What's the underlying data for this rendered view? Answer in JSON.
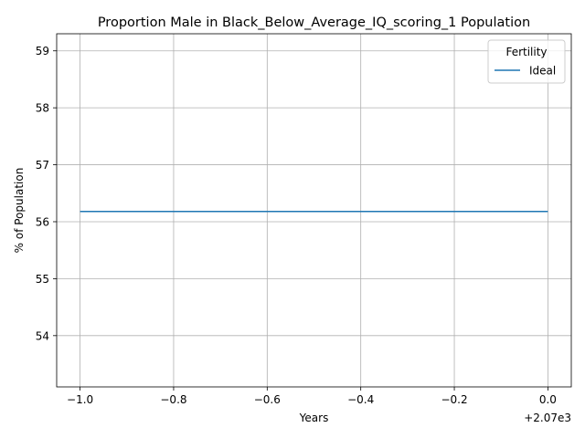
{
  "chart_data": {
    "type": "line",
    "title": "Proportion Male in Black_Below_Average_IQ_scoring_1 Population",
    "xlabel": "Years",
    "ylabel": "% of Population",
    "x_offset_label": "+2.07e3",
    "xlim": [
      -1.05,
      0.05
    ],
    "ylim": [
      53.1,
      59.3
    ],
    "x_ticks": [
      -1.0,
      -0.8,
      -0.6,
      -0.4,
      -0.2,
      0.0
    ],
    "x_tick_labels": [
      "−1.0",
      "−0.8",
      "−0.6",
      "−0.4",
      "−0.2",
      "0.0"
    ],
    "y_ticks": [
      54,
      55,
      56,
      57,
      58,
      59
    ],
    "y_tick_labels": [
      "54",
      "55",
      "56",
      "57",
      "58",
      "59"
    ],
    "grid": true,
    "legend": {
      "title": "Fertility",
      "placement": "top-right"
    },
    "series": [
      {
        "name": "Ideal",
        "color": "#1f77b4",
        "x": [
          -1.0,
          0.0
        ],
        "y": [
          56.18,
          56.18
        ]
      }
    ]
  }
}
